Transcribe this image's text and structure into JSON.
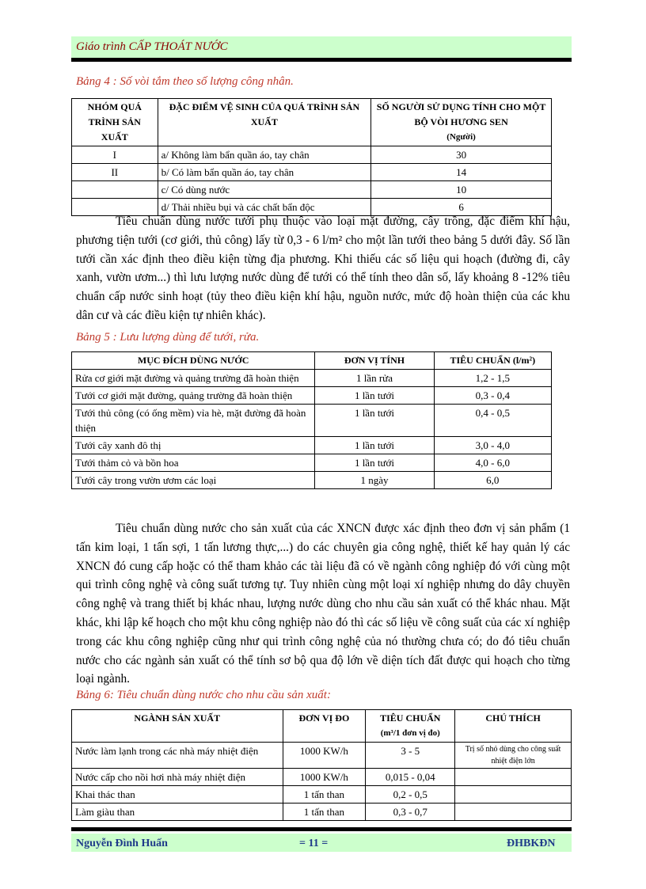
{
  "header": {
    "title": "Giáo trình  CẤP THOÁT NƯỚC"
  },
  "table4": {
    "caption": "Bảng 4 : Số vòi tắm theo số lượng công nhân.",
    "headers": {
      "group": "NHÓM QUÁ TRÌNH SẢN XUẤT",
      "description": "ĐẶC ĐIỂM VỆ SINH CỦA QUÁ TRÌNH SẢN XUẤT",
      "count": "SỐ NGƯỜI SỬ DỤNG TÍNH CHO MỘT BỘ VÒI HƯƠNG SEN",
      "count_unit": "(Người)"
    },
    "rows": [
      {
        "group": "I",
        "description": "a/ Không làm bẩn quần áo, tay chân",
        "count": 30
      },
      {
        "group": "II",
        "description": "b/ Có làm bẩn quần áo, tay chân",
        "count": 14
      },
      {
        "description": "c/ Có dùng nước",
        "count": 10
      },
      {
        "description": "d/ Thải nhiều bụi và các chất bẩn độc",
        "count": 6
      }
    ]
  },
  "paragraph1": "Tiêu chuẩn dùng nước tưới phụ thuộc vào loại mặt đường, cây trồng, đặc điểm khí hậu, phương tiện tưới (cơ giới, thủ công) lấy từ 0,3 - 6 l/m² cho một lần tưới theo bảng 5 dưới đây. Số lần tưới cần xác định theo điều kiện từng địa phương. Khi thiếu các số liệu qui hoạch (đường đi, cây xanh, vườn ươm...) thì lưu lượng nước dùng để tưới có thể tính theo dân số, lấy khoảng 8 -12% tiêu chuẩn cấp nước sinh hoạt (tủy theo điều kiện khí hậu, nguồn nước, mức độ hoàn thiện của các khu dân cư và các điều kiện tự nhiên khác).",
  "table5": {
    "caption": "Bảng 5 : Lưu lượng dùng để tưới, rửa.",
    "headers": {
      "purpose": "MỤC ĐÍCH DÙNG NƯỚC",
      "unit": "ĐƠN VỊ TÍNH",
      "standard": "TIÊU CHUẨN (l/m²)"
    },
    "rows": [
      {
        "purpose": "Rửa cơ giới mặt đường và quảng trường đã hoàn thiện",
        "unit": "1 lần rửa",
        "standard": "1,2 - 1,5"
      },
      {
        "purpose": "Tưới cơ giới mặt đường, quảng trường đã hoàn thiện",
        "unit": "1 lần tưới",
        "standard": "0,3 - 0,4"
      },
      {
        "purpose": "Tưới thủ công (có ống mềm) vỉa hè, mặt đường đã hoàn thiện",
        "unit": "1 lần tưới",
        "standard": "0,4 - 0,5"
      },
      {
        "purpose": "Tưới cây xanh đô thị",
        "unit": "1 lần tưới",
        "standard": "3,0 - 4,0"
      },
      {
        "purpose": "Tưới thảm cỏ và bồn hoa",
        "unit": "1 lần tưới",
        "standard": "4,0 - 6,0"
      },
      {
        "purpose": "Tưới cây trong vườn ươm các loại",
        "unit": "1 ngày",
        "standard": "6,0"
      }
    ]
  },
  "paragraph2": "Tiêu chuẩn dùng nước cho sản xuất của các XNCN được xác định theo đơn vị sản phẩm (1 tấn kim loại, 1 tấn sợi, 1 tấn lương thực,...) do các chuyên gia công nghệ, thiết kế hay quản lý các XNCN đó cung cấp hoặc có thể tham khảo các tài liệu đã có về ngành công nghiệp đó với cùng một qui trình công nghệ và công suất tương tự. Tuy nhiên cùng một loại xí nghiệp nhưng do dây chuyền công nghệ và trang thiết bị khác nhau, lượng nước dùng cho nhu cầu sản xuất có thể khác nhau. Mặt khác, khi lập kế hoạch cho một khu công nghiệp nào đó thì các số liệu về công suất của các xí nghiệp trong các khu công nghiệp cũng như qui trình công nghệ của nó thường chưa có; do đó tiêu chuẩn nước cho các ngành sản xuất có thể tính sơ bộ qua độ lớn về diện tích đất được qui hoạch cho từng loại ngành.",
  "table6": {
    "caption": "Bảng 6: Tiêu chuẩn dùng nước cho nhu cầu sản xuất:",
    "headers": {
      "industry": "NGÀNH SẢN XUẤT",
      "unit": "ĐƠN VỊ ĐO",
      "standard": "TIÊU CHUẨN",
      "standard_unit": "(m³/1 đơn vị đo)",
      "note": "CHÚ THÍCH"
    },
    "rows": [
      {
        "industry": "Nước làm lạnh trong các nhà máy nhiệt điện",
        "unit": "1000 KW/h",
        "standard": "3 - 5",
        "note": "Trị số nhỏ dùng cho công suất nhiệt điện lớn"
      },
      {
        "industry": "Nước cấp cho nồi hơi nhà máy nhiệt điện",
        "unit": "1000 KW/h",
        "standard": "0,015 - 0,04"
      },
      {
        "industry": "Khai thác than",
        "unit": "1 tấn than",
        "standard": "0,2 - 0,5"
      },
      {
        "industry": "Làm giàu than",
        "unit": "1 tấn than",
        "standard": "0,3 - 0,7"
      }
    ]
  },
  "footer": {
    "author": "Nguyễn Đình Huấn",
    "page": "= 11 =",
    "school": "ĐHBKĐN"
  }
}
